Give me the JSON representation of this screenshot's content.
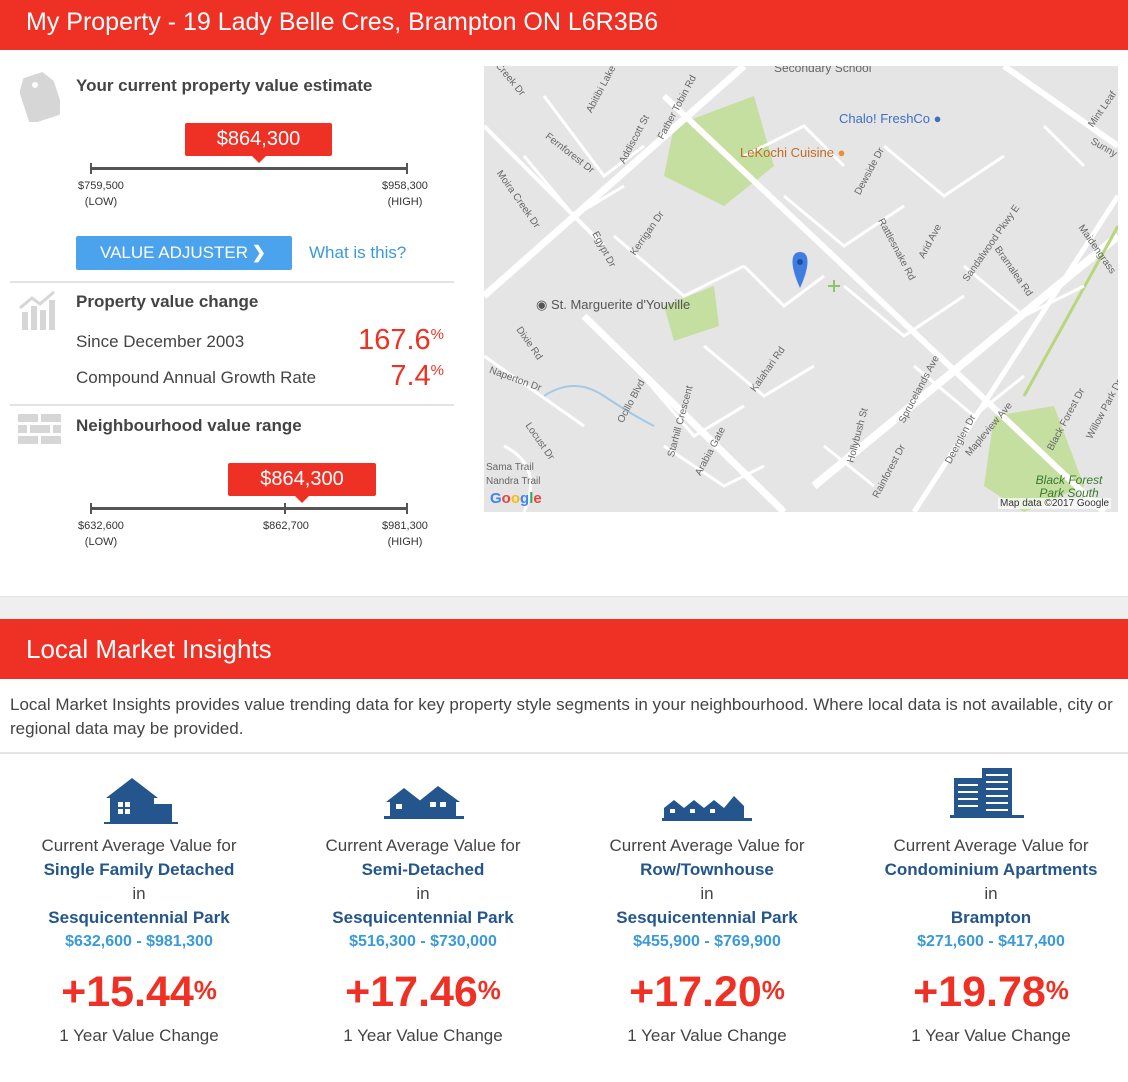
{
  "header": {
    "title": "My Property - 19 Lady Belle Cres, Brampton ON L6R3B6"
  },
  "estimate": {
    "title": "Your current property value estimate",
    "value": "$864,300",
    "low": "$759,500",
    "low_tag": "(LOW)",
    "high": "$958,300",
    "high_tag": "(HIGH)",
    "adjuster_label": "VALUE ADJUSTER",
    "what_link": "What is this?"
  },
  "change": {
    "title": "Property value change",
    "since_label": "Since December 2003",
    "since_value": "167.6",
    "cagr_label": "Compound Annual Growth Rate",
    "cagr_value": "7.4",
    "pct_sign": "%"
  },
  "neighbourhood": {
    "title": "Neighbourhood value range",
    "value": "$864,300",
    "low": "$632,600",
    "low_tag": "(LOW)",
    "mid": "$862,700",
    "high": "$981,300",
    "high_tag": "(HIGH)"
  },
  "map": {
    "pois": [
      "Secondary School",
      "Chalo! FreshCo",
      "LeKochi Cuisine",
      "St. Marguerite d'Youville",
      "Black Forest Park South"
    ],
    "streets": [
      "Creek Dr",
      "Abitibi Lake Dr",
      "Father Tobin Rd",
      "Fernforest Dr",
      "Addiscott St",
      "Moira Creek Dr",
      "Egypt Dr",
      "Kerrigan Dr",
      "Dewside Dr",
      "Rattlesnake Rd",
      "Arid Ave",
      "Sandalwood Pkwy E",
      "Bramalea Rd",
      "Maidengrass",
      "Sunny Mea",
      "Mint Leaf",
      "Dixie Rd",
      "Naperton Dr",
      "Locust Dr",
      "Ocillo Blvd",
      "Starhill Crescent",
      "Arabia Gate",
      "Kalahari Rd",
      "Sprucelands Ave",
      "Hollybush St",
      "Deerglen Dr",
      "Mapleview Ave",
      "Rainforest Dr",
      "Black Forest Dr",
      "Willow Park Dr",
      "Nandra Trail",
      "Sama Trail"
    ],
    "attribution": "Map data ©2017 Google",
    "google": "Google"
  },
  "insights": {
    "title": "Local Market Insights",
    "intro": "Local Market Insights provides value trending data for key property style segments in your neighbourhood. Where local data is not available, city or regional data may be provided.",
    "cards": [
      {
        "icon": "detached-house-icon",
        "label": "Current Average Value for",
        "segment": "Single Family Detached",
        "in": "in",
        "area": "Sesquicentennial Park",
        "range": "$632,600 - $981,300",
        "pct": "+15.44",
        "pct_sign": "%",
        "change_label": "1 Year Value Change"
      },
      {
        "icon": "semi-detached-icon",
        "label": "Current Average Value for",
        "segment": "Semi-Detached",
        "in": "in",
        "area": "Sesquicentennial Park",
        "range": "$516,300 - $730,000",
        "pct": "+17.46",
        "pct_sign": "%",
        "change_label": "1 Year Value Change"
      },
      {
        "icon": "townhouse-icon",
        "label": "Current Average Value for",
        "segment": "Row/Townhouse",
        "in": "in",
        "area": "Sesquicentennial Park",
        "range": "$455,900 - $769,900",
        "pct": "+17.20",
        "pct_sign": "%",
        "change_label": "1 Year Value Change"
      },
      {
        "icon": "condo-building-icon",
        "label": "Current Average Value for",
        "segment": "Condominium Apartments",
        "in": "in",
        "area": "Brampton",
        "range": "$271,600 - $417,400",
        "pct": "+19.78",
        "pct_sign": "%",
        "change_label": "1 Year Value Change"
      }
    ]
  },
  "colors": {
    "accent": "#ee3124",
    "button": "#4aa3ec",
    "link": "#3a9ad9",
    "navy": "#24558c"
  }
}
